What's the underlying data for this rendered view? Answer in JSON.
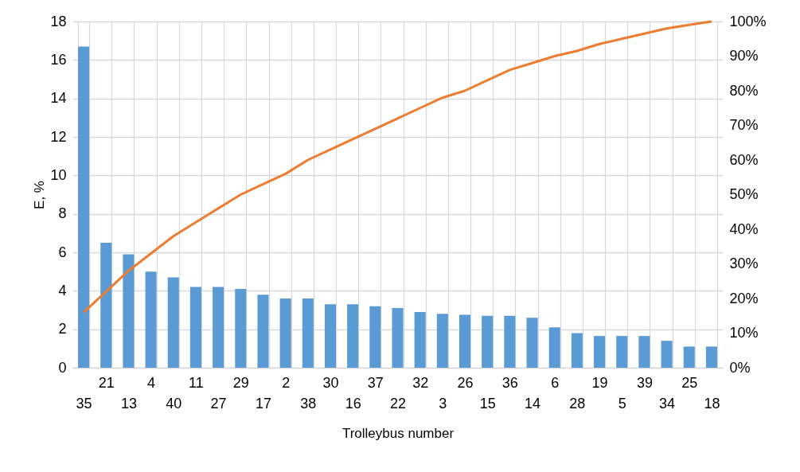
{
  "chart_data": {
    "type": "bar",
    "xlabel": "Trolleybus number",
    "ylabel": "E, %",
    "categories": [
      "35",
      "21",
      "13",
      "4",
      "40",
      "11",
      "27",
      "29",
      "17",
      "2",
      "38",
      "30",
      "16",
      "37",
      "22",
      "32",
      "3",
      "26",
      "15",
      "36",
      "14",
      "6",
      "28",
      "19",
      "5",
      "39",
      "34",
      "25",
      "18"
    ],
    "series": [
      {
        "color": "#5b9bd5",
        "values": [
          16.7,
          6.5,
          5.9,
          5.0,
          4.7,
          4.2,
          4.2,
          4.1,
          3.8,
          3.6,
          3.6,
          3.3,
          3.3,
          3.2,
          3.1,
          2.9,
          2.8,
          2.75,
          2.7,
          2.7,
          2.6,
          2.1,
          1.8,
          1.65,
          1.65,
          1.65,
          1.4,
          1.1,
          1.1
        ]
      },
      {
        "type": "line",
        "axis": "y2",
        "color": "#ed7d31",
        "values": [
          16,
          22,
          28,
          33,
          38,
          42,
          46,
          50,
          53,
          56,
          60,
          63,
          66,
          69,
          72,
          75,
          78,
          80,
          83,
          86,
          88,
          90,
          91.5,
          93.5,
          95,
          96.5,
          98,
          99,
          100
        ]
      }
    ],
    "ylim": [
      0,
      18
    ],
    "yticks": [
      0,
      2,
      4,
      6,
      8,
      10,
      12,
      14,
      16,
      18
    ],
    "y2lim": [
      0,
      100
    ],
    "y2ticks": [
      {
        "value": 0,
        "label": "0%"
      },
      {
        "value": 10,
        "label": "10%"
      },
      {
        "value": 20,
        "label": "20%"
      },
      {
        "value": 30,
        "label": "30%"
      },
      {
        "value": 40,
        "label": "40%"
      },
      {
        "value": 50,
        "label": "50%"
      },
      {
        "value": 60,
        "label": "60%"
      },
      {
        "value": 70,
        "label": "70%"
      },
      {
        "value": 80,
        "label": "80%"
      },
      {
        "value": 90,
        "label": "90%"
      },
      {
        "value": 100,
        "label": "100%"
      }
    ],
    "grid": true
  }
}
